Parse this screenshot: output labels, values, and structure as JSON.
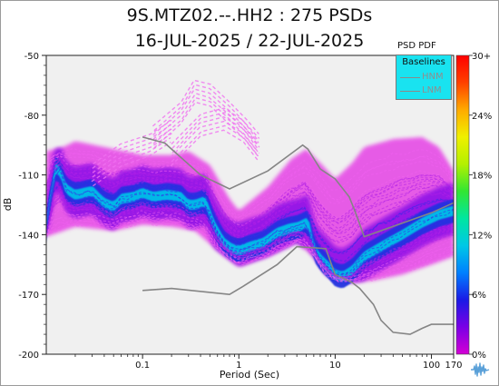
{
  "chart_data": {
    "type": "heatmap",
    "title": "9S.MTZ02.--.HH2 : 275 PSDs",
    "subtitle": "16-JUL-2025 / 22-JUL-2025",
    "xlabel": "Period (Sec)",
    "ylabel": "dB",
    "xscale": "log",
    "xlim": [
      0.01,
      170
    ],
    "ylim": [
      -200,
      -50
    ],
    "grid": false,
    "x_ticks": [
      {
        "value": 0.1,
        "label": "0.1"
      },
      {
        "value": 1,
        "label": "1"
      },
      {
        "value": 10,
        "label": "10"
      },
      {
        "value": 100,
        "label": "100"
      },
      {
        "value": 170,
        "label": "170"
      }
    ],
    "y_ticks": [
      {
        "value": -50,
        "label": "-50"
      },
      {
        "value": -80,
        "label": "-80"
      },
      {
        "value": -110,
        "label": "-110"
      },
      {
        "value": -140,
        "label": "-140"
      },
      {
        "value": -170,
        "label": "-170"
      },
      {
        "value": -200,
        "label": "-200"
      }
    ],
    "colorbar": {
      "title": "PSD PDF",
      "ticks": [
        "30+",
        "24%",
        "18%",
        "12%",
        "6%",
        "0%"
      ],
      "stops": [
        "#d400d4",
        "#7a00e6",
        "#1a1ae6",
        "#0080ff",
        "#00c8e6",
        "#00e6a0",
        "#32e632",
        "#b4f000",
        "#f0f000",
        "#ffaa00",
        "#ff4000",
        "#ff0000"
      ]
    },
    "legend": {
      "title": "Baselines",
      "placement": "top-right",
      "items": [
        "HNM",
        "LNM"
      ]
    },
    "baselines": [
      {
        "name": "HNM",
        "color": "#858585",
        "points": [
          [
            0.1,
            -91
          ],
          [
            0.17,
            -94
          ],
          [
            0.4,
            -110
          ],
          [
            0.8,
            -117
          ],
          [
            2,
            -108
          ],
          [
            4.6,
            -95
          ],
          [
            5.2,
            -97
          ],
          [
            7,
            -107
          ],
          [
            10,
            -112
          ],
          [
            14,
            -121
          ],
          [
            16,
            -128
          ],
          [
            20,
            -141
          ],
          [
            100,
            -129
          ],
          [
            170,
            -124
          ]
        ]
      },
      {
        "name": "LNM",
        "color": "#858585",
        "points": [
          [
            0.1,
            -168
          ],
          [
            0.2,
            -167
          ],
          [
            0.8,
            -170
          ],
          [
            1.1,
            -166
          ],
          [
            2.5,
            -155
          ],
          [
            4,
            -146
          ],
          [
            8,
            -147
          ],
          [
            10,
            -160
          ],
          [
            15,
            -164
          ],
          [
            18,
            -167
          ],
          [
            25,
            -175
          ],
          [
            30,
            -183
          ],
          [
            40,
            -189
          ],
          [
            60,
            -190
          ],
          [
            80,
            -187
          ],
          [
            100,
            -185
          ],
          [
            170,
            -185
          ]
        ]
      }
    ],
    "pdf_mode": [
      [
        0.01,
        -138
      ],
      [
        0.011,
        -120
      ],
      [
        0.0125,
        -107
      ],
      [
        0.014,
        -108
      ],
      [
        0.016,
        -117
      ],
      [
        0.02,
        -120
      ],
      [
        0.03,
        -118
      ],
      [
        0.04,
        -124
      ],
      [
        0.05,
        -126
      ],
      [
        0.06,
        -122
      ],
      [
        0.08,
        -121
      ],
      [
        0.1,
        -119
      ],
      [
        0.13,
        -121
      ],
      [
        0.18,
        -120
      ],
      [
        0.25,
        -121
      ],
      [
        0.3,
        -125
      ],
      [
        0.35,
        -125
      ],
      [
        0.45,
        -123
      ],
      [
        0.55,
        -135
      ],
      [
        0.7,
        -144
      ],
      [
        0.85,
        -147
      ],
      [
        1,
        -148
      ],
      [
        1.3,
        -146
      ],
      [
        1.8,
        -144
      ],
      [
        2.5,
        -139
      ],
      [
        3.3,
        -137
      ],
      [
        4.2,
        -136
      ],
      [
        5,
        -134
      ],
      [
        5.4,
        -136
      ],
      [
        6,
        -147
      ],
      [
        7,
        -152
      ],
      [
        8.5,
        -156
      ],
      [
        10,
        -160
      ],
      [
        12,
        -161
      ],
      [
        15,
        -158
      ],
      [
        20,
        -151
      ],
      [
        30,
        -146
      ],
      [
        50,
        -140
      ],
      [
        80,
        -134
      ],
      [
        120,
        -130
      ],
      [
        170,
        -128
      ]
    ],
    "pdf_upper": [
      [
        0.01,
        -98
      ],
      [
        0.015,
        -96
      ],
      [
        0.02,
        -93
      ],
      [
        0.05,
        -97
      ],
      [
        0.1,
        -100
      ],
      [
        0.2,
        -100
      ],
      [
        0.3,
        -98
      ],
      [
        0.5,
        -105
      ],
      [
        0.8,
        -122
      ],
      [
        1,
        -128
      ],
      [
        2,
        -116
      ],
      [
        3.5,
        -102
      ],
      [
        5,
        -97
      ],
      [
        7,
        -104
      ],
      [
        10,
        -112
      ],
      [
        15,
        -104
      ],
      [
        20,
        -96
      ],
      [
        40,
        -92
      ],
      [
        80,
        -91
      ],
      [
        120,
        -96
      ],
      [
        170,
        -108
      ]
    ],
    "pdf_lower": [
      [
        0.01,
        -141
      ],
      [
        0.02,
        -136
      ],
      [
        0.05,
        -138
      ],
      [
        0.1,
        -135
      ],
      [
        0.2,
        -136
      ],
      [
        0.35,
        -138
      ],
      [
        0.6,
        -148
      ],
      [
        1,
        -156
      ],
      [
        2,
        -151
      ],
      [
        4,
        -144
      ],
      [
        6,
        -151
      ],
      [
        8,
        -160
      ],
      [
        10,
        -163
      ],
      [
        15,
        -164
      ],
      [
        25,
        -163
      ],
      [
        50,
        -160
      ],
      [
        100,
        -155
      ],
      [
        170,
        -151
      ]
    ],
    "outlier_bands": [
      [
        [
          0.13,
          -91
        ],
        [
          0.25,
          -79
        ],
        [
          0.35,
          -68
        ],
        [
          0.5,
          -70
        ],
        [
          0.8,
          -79
        ],
        [
          1.2,
          -88
        ],
        [
          1.6,
          -95
        ]
      ],
      [
        [
          0.2,
          -100
        ],
        [
          0.4,
          -85
        ],
        [
          0.7,
          -82
        ],
        [
          1.1,
          -88
        ],
        [
          1.6,
          -98
        ]
      ],
      [
        [
          0.03,
          -110
        ],
        [
          0.06,
          -100
        ],
        [
          0.12,
          -95
        ],
        [
          0.2,
          -88
        ]
      ]
    ]
  }
}
